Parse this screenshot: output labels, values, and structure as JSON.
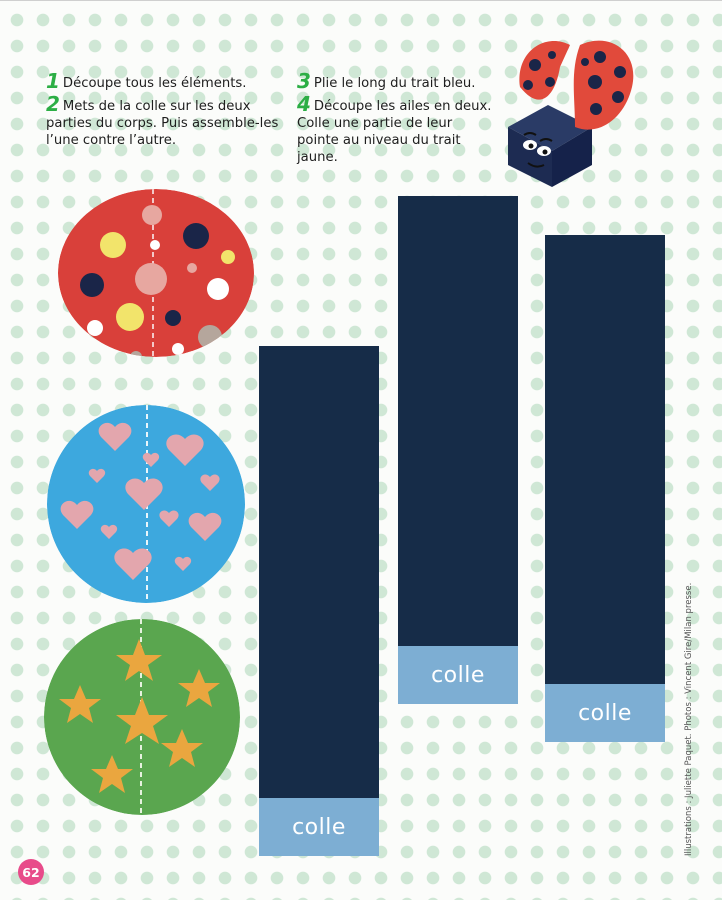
{
  "instructions": {
    "left": [
      {
        "num": "1",
        "text": "Découpe tous les éléments."
      },
      {
        "num": "2",
        "text": "Mets de la colle sur les deux parties du corps. Puis assemble-les l’une contre l’autre."
      }
    ],
    "right": [
      {
        "num": "3",
        "text": "Plie le long du trait bleu."
      },
      {
        "num": "4",
        "text": "Découpe les ailes en deux. Colle une partie de leur pointe au niveau du trait jaune."
      }
    ]
  },
  "strips": {
    "glue_label": "colle"
  },
  "page_number": "62",
  "credits": "Illustrations : Juliette Paquet. Photos : Vincent Gire/Milan presse.",
  "colors": {
    "green_number": "#2cae45",
    "red_disc": "#d9403a",
    "blue_disc": "#3da8de",
    "green_disc": "#5aa64f",
    "navy_strip": "#162c48",
    "glue_band": "#7daed3",
    "page_badge": "#e84b8a",
    "polka_dot": "#cfe7d5"
  },
  "icons": {
    "illustration": "ladybug-craft-photo"
  }
}
